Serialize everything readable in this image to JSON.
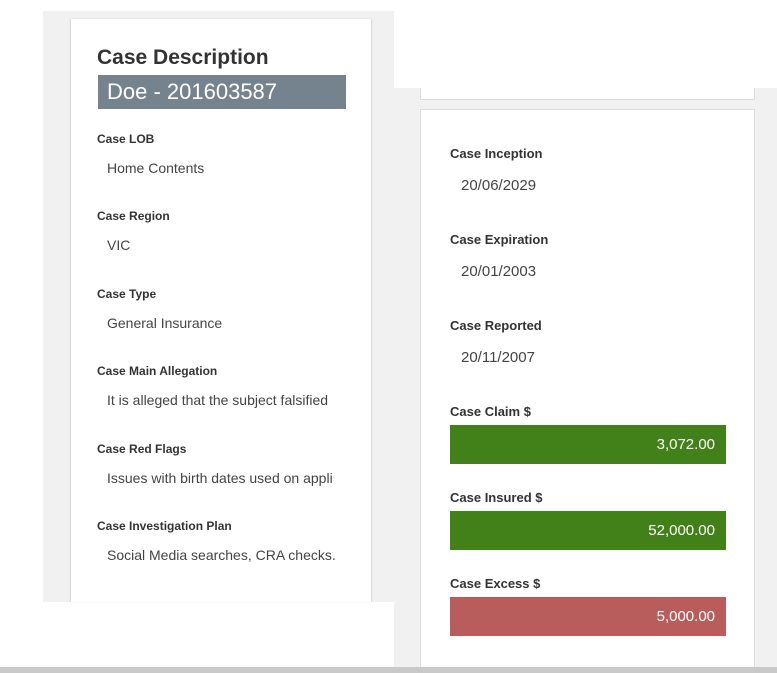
{
  "left": {
    "title": "Case Description",
    "banner": "Doe - 201603587",
    "fields": [
      {
        "label": "Case LOB",
        "value": "Home Contents"
      },
      {
        "label": "Case Region",
        "value": "VIC"
      },
      {
        "label": "Case Type",
        "value": "General Insurance"
      },
      {
        "label": "Case Main Allegation",
        "value": "It is alleged that the subject falsified"
      },
      {
        "label": "Case Red Flags",
        "value": "Issues with birth dates used on appli"
      },
      {
        "label": "Case Investigation Plan",
        "value": "Social Media searches, CRA checks."
      }
    ]
  },
  "right": {
    "dates": [
      {
        "label": "Case Inception",
        "value": "20/06/2029"
      },
      {
        "label": "Case Expiration",
        "value": "20/01/2003"
      },
      {
        "label": "Case Reported",
        "value": "20/11/2007"
      }
    ],
    "amounts": [
      {
        "label": "Case Claim $",
        "value": "3,072.00",
        "color": "#42801a"
      },
      {
        "label": "Case Insured $",
        "value": "52,000.00",
        "color": "#42801a"
      },
      {
        "label": "Case Excess $",
        "value": "5,000.00",
        "color": "#b85c5c"
      }
    ]
  },
  "colors": {
    "banner_bg": "#75838f",
    "positive": "#42801a",
    "negative": "#b85c5c"
  }
}
